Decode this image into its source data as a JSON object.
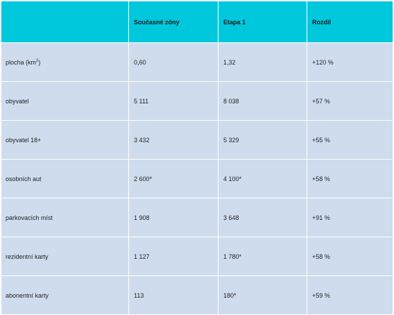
{
  "table": {
    "headers": [
      "",
      "Současné zóny",
      "Etapa 1",
      "Rozdíl"
    ],
    "rows": [
      {
        "label": "plocha (km",
        "label_sup": "2",
        "label_tail": ")",
        "current": "0,60",
        "stage1": "1,32",
        "diff": "+120 %"
      },
      {
        "label": "obyvatel",
        "current": "5 111",
        "stage1": "8 038",
        "diff": "+57 %"
      },
      {
        "label": "obyvatel 18+",
        "current": "3 432",
        "stage1": "5 329",
        "diff": "+55 %"
      },
      {
        "label": "osobních aut",
        "current": "2 600*",
        "stage1": "4 100*",
        "diff": "+58 %"
      },
      {
        "label": "parkovacích míst",
        "current": "1 908",
        "stage1": "3 648",
        "diff": "+91 %"
      },
      {
        "label": "rezidentní karty",
        "current": "1 127",
        "stage1": "1 780*",
        "diff": "+58 %"
      },
      {
        "label": "abonentní karty",
        "current": "113",
        "stage1": "180*",
        "diff": "+59 %"
      }
    ]
  },
  "colors": {
    "header_bg": "#00c8dc",
    "row_bg": "#cfdced",
    "border": "#ffffff"
  }
}
